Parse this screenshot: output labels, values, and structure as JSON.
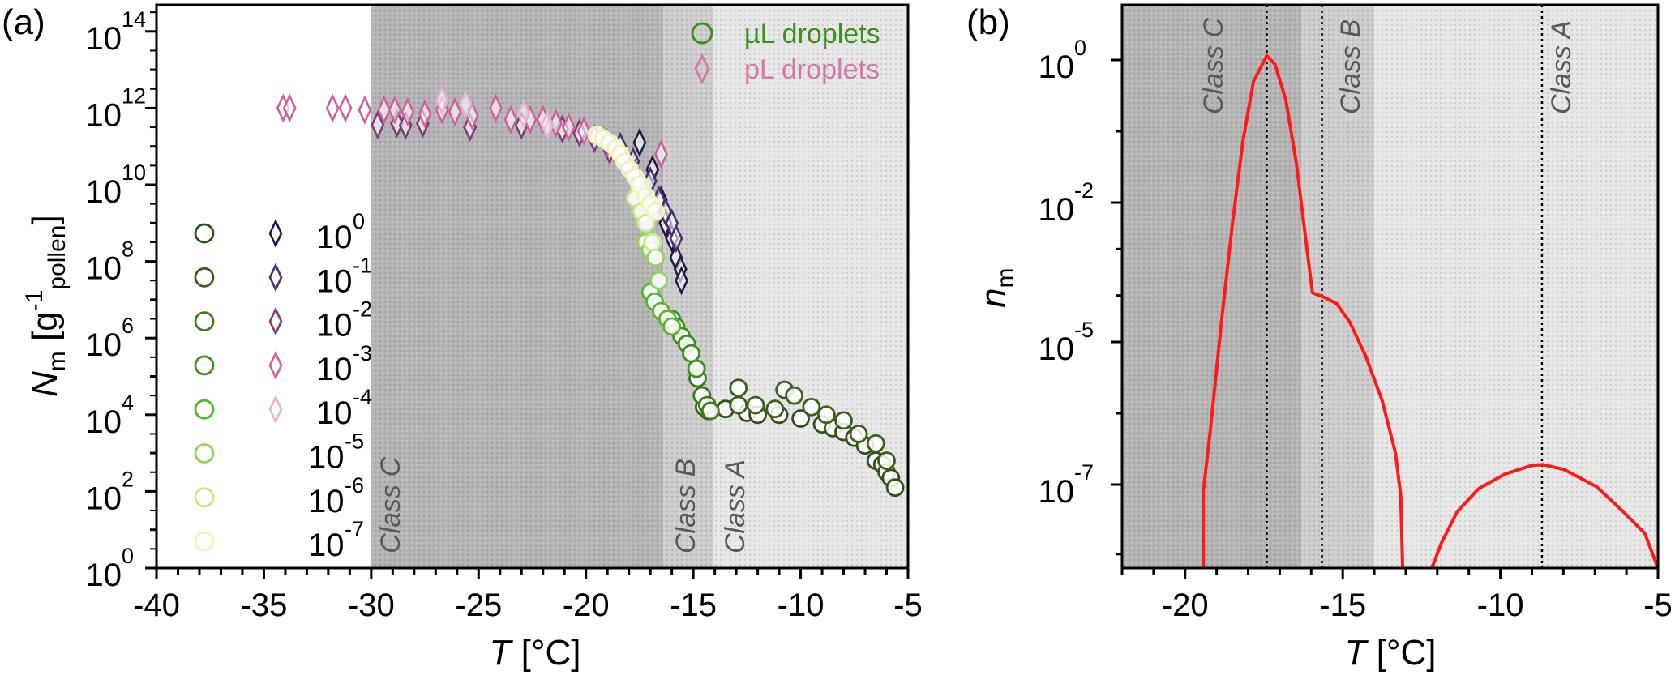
{
  "chart_data": [
    {
      "panel_label": "(a)",
      "type": "scatter",
      "xlabel": {
        "italic": "T",
        "rest": " [°C]"
      },
      "ylabel": {
        "italic": "N",
        "sub": "m",
        "open": " [g",
        "sup": "-1",
        "sub2": "pollen",
        "close": "]"
      },
      "xlim": [
        -40,
        -5
      ],
      "ylim_log10": [
        0,
        14.7
      ],
      "xticks": [
        -40,
        -35,
        -30,
        -25,
        -20,
        -15,
        -10,
        -5
      ],
      "xtick_labels": [
        "-40",
        "-35",
        "-30",
        "-25",
        "-20",
        "-15",
        "-10",
        "-5"
      ],
      "yticks_log10": [
        0,
        2,
        4,
        6,
        8,
        10,
        12,
        14
      ],
      "ytick_base": "10",
      "ytick_exps": [
        "0",
        "2",
        "4",
        "6",
        "8",
        "10",
        "12",
        "14"
      ],
      "regions": [
        {
          "label": "Class C",
          "from": -30,
          "to": -16.4,
          "shade": "#b4b4b4"
        },
        {
          "label": "Class B",
          "from": -16.4,
          "to": -14.1,
          "shade": "#cdcdcd"
        },
        {
          "label": "Class A",
          "from": -14.1,
          "to": -5,
          "shade": "#e6e6e6"
        }
      ],
      "legend": {
        "placement": "top-right",
        "entries": [
          {
            "label": "µL droplets",
            "marker": "circle",
            "color": "#3f8f1f"
          },
          {
            "label": "pL droplets",
            "marker": "diamond",
            "color": "#d27aa8"
          }
        ]
      },
      "concentration_legend": {
        "placement": "left",
        "base": "10",
        "exps": [
          "0",
          "-1",
          "-2",
          "-3",
          "-4",
          "-5",
          "-6",
          "-7"
        ],
        "circle_colors": [
          "#33501a",
          "#3d5f1c",
          "#3f7a1e",
          "#3f8f1f",
          "#58b42c",
          "#8fd45a",
          "#c8e98a",
          "#eef5b8"
        ],
        "diamond_colors": [
          "#241a48",
          "#4b2f6e",
          "#7b3f7c",
          "#d0619c",
          "#e3b3d2"
        ]
      },
      "series": [
        {
          "name": "pL 10^0",
          "marker": "diamond",
          "color": "#241a48",
          "points": [
            [
              -17.5,
              11.1
            ],
            [
              -16.9,
              10.4
            ],
            [
              -16.5,
              9.6
            ],
            [
              -16.3,
              9.0
            ],
            [
              -16.0,
              8.6
            ],
            [
              -15.8,
              8.1
            ],
            [
              -15.6,
              7.8
            ],
            [
              -15.55,
              7.5
            ]
          ]
        },
        {
          "name": "pL 10^-1",
          "marker": "diamond",
          "color": "#4b2f6e",
          "points": [
            [
              -18.4,
              11.0
            ],
            [
              -17.8,
              10.6
            ],
            [
              -17.0,
              10.1
            ],
            [
              -16.6,
              9.6
            ],
            [
              -16.3,
              9.3
            ],
            [
              -16.0,
              9.0
            ],
            [
              -15.8,
              8.6
            ]
          ]
        },
        {
          "name": "pL 10^-2",
          "marker": "diamond",
          "color": "#7b3f7c",
          "points": [
            [
              -29.7,
              11.56
            ],
            [
              -28.8,
              11.6
            ],
            [
              -28.4,
              11.55
            ],
            [
              -27.6,
              11.6
            ],
            [
              -25.4,
              11.5
            ],
            [
              -23.0,
              11.55
            ],
            [
              -21.1,
              11.45
            ],
            [
              -20.3,
              11.35
            ],
            [
              -19.6,
              11.2
            ],
            [
              -18.9,
              10.9
            ],
            [
              -18.2,
              10.6
            ],
            [
              -17.7,
              10.3
            ]
          ]
        },
        {
          "name": "pL 10^-3",
          "marker": "diamond",
          "color": "#d0619c",
          "points": [
            [
              -34.1,
              12.0
            ],
            [
              -33.8,
              12.0
            ],
            [
              -31.8,
              12.0
            ],
            [
              -31.2,
              12.0
            ],
            [
              -30.3,
              11.95
            ],
            [
              -29.4,
              11.95
            ],
            [
              -28.9,
              11.95
            ],
            [
              -28.3,
              11.9
            ],
            [
              -27.5,
              11.85
            ],
            [
              -26.7,
              11.95
            ],
            [
              -26.1,
              11.9
            ],
            [
              -25.3,
              11.8
            ],
            [
              -24.2,
              12.0
            ],
            [
              -23.5,
              11.7
            ],
            [
              -22.6,
              11.7
            ],
            [
              -22.0,
              11.7
            ],
            [
              -21.4,
              11.6
            ],
            [
              -20.8,
              11.5
            ],
            [
              -20.1,
              11.4
            ],
            [
              -19.0,
              11.1
            ],
            [
              -16.5,
              10.8
            ]
          ]
        },
        {
          "name": "pL 10^-4",
          "marker": "diamond",
          "color": "#e3b3d2",
          "points": [
            [
              -26.7,
              12.2
            ],
            [
              -25.6,
              12.1
            ],
            [
              -22.9,
              11.85
            ],
            [
              -21.8,
              11.55
            ]
          ]
        },
        {
          "name": "µL 10^0",
          "marker": "circle",
          "color": "#33501a",
          "points": [
            [
              -14.3,
              4.1
            ],
            [
              -13.5,
              4.15
            ],
            [
              -12.5,
              4.05
            ],
            [
              -12.0,
              4.0
            ],
            [
              -11.0,
              4.0
            ],
            [
              -10.0,
              3.9
            ],
            [
              -9.0,
              3.75
            ],
            [
              -8.5,
              3.65
            ],
            [
              -8.0,
              3.55
            ],
            [
              -7.5,
              3.4
            ],
            [
              -7.0,
              3.2
            ],
            [
              -6.5,
              2.8
            ],
            [
              -6.2,
              2.7
            ],
            [
              -6.0,
              2.5
            ],
            [
              -5.8,
              2.35
            ],
            [
              -5.6,
              2.1
            ]
          ]
        },
        {
          "name": "µL 10^-1",
          "marker": "circle",
          "color": "#3d5f1c",
          "points": [
            [
              -14.5,
              4.2
            ],
            [
              -12.9,
              4.7
            ],
            [
              -12.9,
              4.25
            ],
            [
              -12.1,
              4.25
            ],
            [
              -11.2,
              4.15
            ],
            [
              -10.75,
              4.65
            ],
            [
              -10.3,
              4.5
            ],
            [
              -9.5,
              4.2
            ],
            [
              -8.8,
              4.0
            ],
            [
              -8.0,
              3.85
            ],
            [
              -7.3,
              3.5
            ],
            [
              -6.5,
              3.25
            ],
            [
              -6.0,
              2.8
            ]
          ]
        },
        {
          "name": "µL 10^-2",
          "marker": "circle",
          "color": "#3f7a1e",
          "points": [
            [
              -14.8,
              4.95
            ],
            [
              -14.6,
              4.5
            ],
            [
              -14.35,
              4.25
            ],
            [
              -14.2,
              4.1
            ]
          ]
        },
        {
          "name": "µL 10^-3",
          "marker": "circle",
          "color": "#3f8f1f",
          "points": [
            [
              -16.0,
              6.5
            ],
            [
              -15.8,
              6.3
            ],
            [
              -15.55,
              6.05
            ],
            [
              -15.3,
              5.85
            ],
            [
              -15.1,
              5.6
            ],
            [
              -14.85,
              5.2
            ]
          ]
        },
        {
          "name": "µL 10^-4",
          "marker": "circle",
          "color": "#58b42c",
          "points": [
            [
              -17.0,
              7.2
            ],
            [
              -16.8,
              6.95
            ],
            [
              -16.5,
              6.7
            ],
            [
              -16.2,
              6.5
            ],
            [
              -16.0,
              6.3
            ]
          ]
        },
        {
          "name": "µL 10^-5",
          "marker": "circle",
          "color": "#8fd45a",
          "points": [
            [
              -17.2,
              8.5
            ],
            [
              -17.0,
              8.3
            ],
            [
              -16.75,
              8.1
            ],
            [
              -16.6,
              7.5
            ]
          ]
        },
        {
          "name": "µL 10^-6",
          "marker": "circle",
          "color": "#c8e98a",
          "points": [
            [
              -17.7,
              9.65
            ],
            [
              -17.4,
              9.3
            ],
            [
              -17.2,
              9.0
            ],
            [
              -16.9,
              8.5
            ]
          ]
        },
        {
          "name": "µL 10^-7",
          "marker": "circle",
          "color": "#eef5b8",
          "points": [
            [
              -19.5,
              11.3
            ],
            [
              -19.2,
              11.2
            ],
            [
              -18.9,
              11.1
            ],
            [
              -18.6,
              10.95
            ],
            [
              -18.4,
              10.8
            ],
            [
              -18.2,
              10.6
            ],
            [
              -17.95,
              10.4
            ],
            [
              -17.7,
              10.2
            ],
            [
              -17.5,
              10.0
            ],
            [
              -17.2,
              9.7
            ],
            [
              -17.0,
              9.5
            ],
            [
              -16.75,
              9.3
            ]
          ]
        }
      ]
    },
    {
      "panel_label": "(b)",
      "type": "line",
      "xlabel": {
        "italic": "T",
        "rest": " [°C]"
      },
      "ylabel": {
        "italic": "n",
        "sub": "m"
      },
      "xlim": [
        -22,
        -5
      ],
      "xticks": [
        -20,
        -15,
        -10,
        -5
      ],
      "xtick_labels": [
        "-20",
        "-15",
        "-10",
        "-5"
      ],
      "ytick_base": "10",
      "yticks_log10": [
        0,
        -2,
        -5,
        -7
      ],
      "ytick_exps": [
        "0",
        "-2",
        "-5",
        "-7"
      ],
      "regions": [
        {
          "label": "Class C",
          "from": -22,
          "to": -16.3,
          "shade": "#b4b4b4",
          "marker_T": -17.41
        },
        {
          "label": "Class B",
          "from": -16.3,
          "to": -14.0,
          "shade": "#cdcdcd",
          "marker_T": -15.66
        },
        {
          "label": "Class A",
          "from": -14.0,
          "to": -5,
          "shade": "#e6e6e6",
          "marker_T": -8.68
        }
      ],
      "line_color": "#ff1a1a",
      "series": [
        {
          "name": "curve-low-T",
          "points": [
            [
              -19.42,
              -8.2
            ],
            [
              -19.42,
              -7.09
            ],
            [
              -19.2,
              -6.24
            ],
            [
              -18.85,
              -4.58
            ],
            [
              -18.5,
              -2.46
            ],
            [
              -18.17,
              -1.15
            ],
            [
              -17.83,
              -0.3
            ],
            [
              -17.41,
              0.06
            ],
            [
              -17.15,
              -0.06
            ],
            [
              -16.81,
              -0.55
            ],
            [
              -16.47,
              -1.45
            ],
            [
              -16.13,
              -3.02
            ],
            [
              -15.96,
              -3.94
            ],
            [
              -15.62,
              -4.03
            ],
            [
              -15.2,
              -4.17
            ],
            [
              -14.77,
              -4.58
            ],
            [
              -14.26,
              -5.21
            ],
            [
              -13.75,
              -5.82
            ],
            [
              -13.33,
              -6.55
            ],
            [
              -13.16,
              -7.15
            ],
            [
              -13.1,
              -8.2
            ]
          ]
        },
        {
          "name": "curve-high-T",
          "points": [
            [
              -12.17,
              -8.2
            ],
            [
              -11.88,
              -7.85
            ],
            [
              -11.37,
              -7.39
            ],
            [
              -10.69,
              -7.06
            ],
            [
              -9.84,
              -6.85
            ],
            [
              -8.99,
              -6.73
            ],
            [
              -8.65,
              -6.72
            ],
            [
              -7.97,
              -6.79
            ],
            [
              -6.95,
              -7.03
            ],
            [
              -6.1,
              -7.39
            ],
            [
              -5.42,
              -7.7
            ],
            [
              -5.0,
              -8.2
            ]
          ]
        }
      ]
    }
  ]
}
